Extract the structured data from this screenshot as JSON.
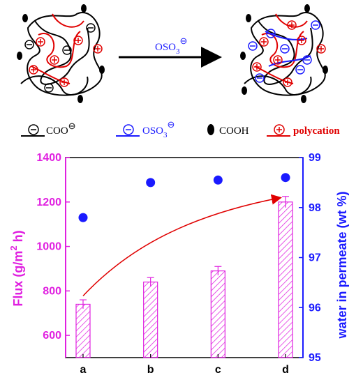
{
  "scheme": {
    "arrow_label_main": "OSO",
    "arrow_label_sub": "3",
    "legend": {
      "coo_label": "COO",
      "oso3_label_main": "OSO",
      "oso3_label_sub": "3",
      "cooh_label": "COOH",
      "polycation_label": "polycation"
    },
    "colors": {
      "polymer": "#000000",
      "polycation": "#e00000",
      "sulfate": "#1a1aff"
    }
  },
  "chart_data": {
    "type": "bar",
    "categories": [
      "a",
      "b",
      "c",
      "d"
    ],
    "series": [
      {
        "values": [
          740,
          840,
          890,
          1200
        ],
        "errors": [
          20,
          20,
          20,
          25
        ],
        "axis": "left",
        "color": "#e020e0",
        "pattern": "hatched"
      },
      {
        "values": [
          97.8,
          98.5,
          98.55,
          98.6
        ],
        "axis": "right",
        "type": "scatter",
        "color": "#1a1aff"
      }
    ],
    "ylabel_left": "Flux (g/m",
    "ylabel_left_sup": "2",
    "ylabel_left_tail": " h)",
    "ylabel_right": "water in permeate (wt %)",
    "ylim_left": [
      500,
      1400
    ],
    "yticks_left": [
      600,
      800,
      1000,
      1200,
      1400
    ],
    "ylim_right": [
      95,
      99
    ],
    "yticks_right": [
      95,
      96,
      97,
      98,
      99
    ],
    "trend_arrow_color": "#e00000",
    "left_axis_color": "#e020e0",
    "right_axis_color": "#1a1aff"
  }
}
